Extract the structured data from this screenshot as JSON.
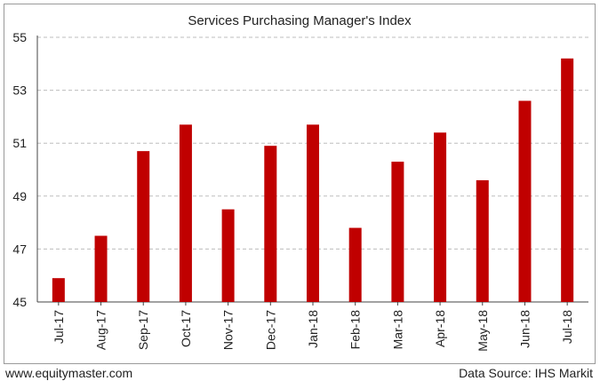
{
  "chart_data": {
    "type": "bar",
    "title": "Services Purchasing Manager's Index",
    "xlabel": "",
    "ylabel": "",
    "categories": [
      "Jul-17",
      "Aug-17",
      "Sep-17",
      "Oct-17",
      "Nov-17",
      "Dec-17",
      "Jan-18",
      "Feb-18",
      "Mar-18",
      "Apr-18",
      "May-18",
      "Jun-18",
      "Jul-18"
    ],
    "values": [
      45.9,
      47.5,
      50.7,
      51.7,
      48.5,
      50.9,
      51.7,
      47.8,
      50.3,
      51.4,
      49.6,
      52.6,
      54.2
    ],
    "ylim": [
      45,
      55
    ],
    "yticks": [
      "45",
      "47",
      "49",
      "51",
      "53",
      "55"
    ],
    "grid": true,
    "legend": "none",
    "bar_color": "#c00000"
  },
  "footer": {
    "website": "www.equitymaster.com",
    "source": "Data Source: IHS Markit"
  }
}
